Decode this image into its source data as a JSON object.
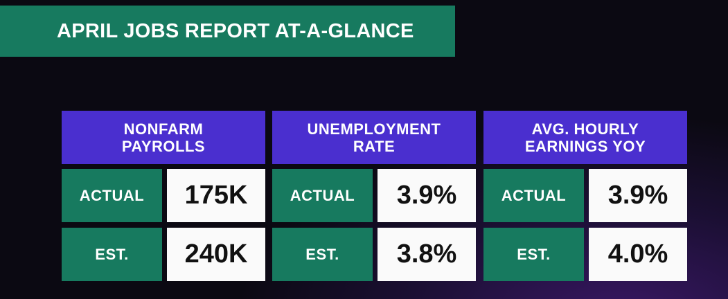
{
  "header": {
    "title": "APRIL JOBS REPORT AT-A-GLANCE"
  },
  "panels": [
    {
      "title_lines": [
        "NONFARM",
        "PAYROLLS"
      ],
      "rows": [
        {
          "label": "ACTUAL",
          "value": "175K"
        },
        {
          "label": "EST.",
          "value": "240K"
        }
      ]
    },
    {
      "title_lines": [
        "UNEMPLOYMENT",
        "RATE"
      ],
      "rows": [
        {
          "label": "ACTUAL",
          "value": "3.9%"
        },
        {
          "label": "EST.",
          "value": "3.8%"
        }
      ]
    },
    {
      "title_lines": [
        "AVG. HOURLY",
        "EARNINGS YOY"
      ],
      "rows": [
        {
          "label": "ACTUAL",
          "value": "3.9%"
        },
        {
          "label": "EST.",
          "value": "4.0%"
        }
      ]
    }
  ]
}
